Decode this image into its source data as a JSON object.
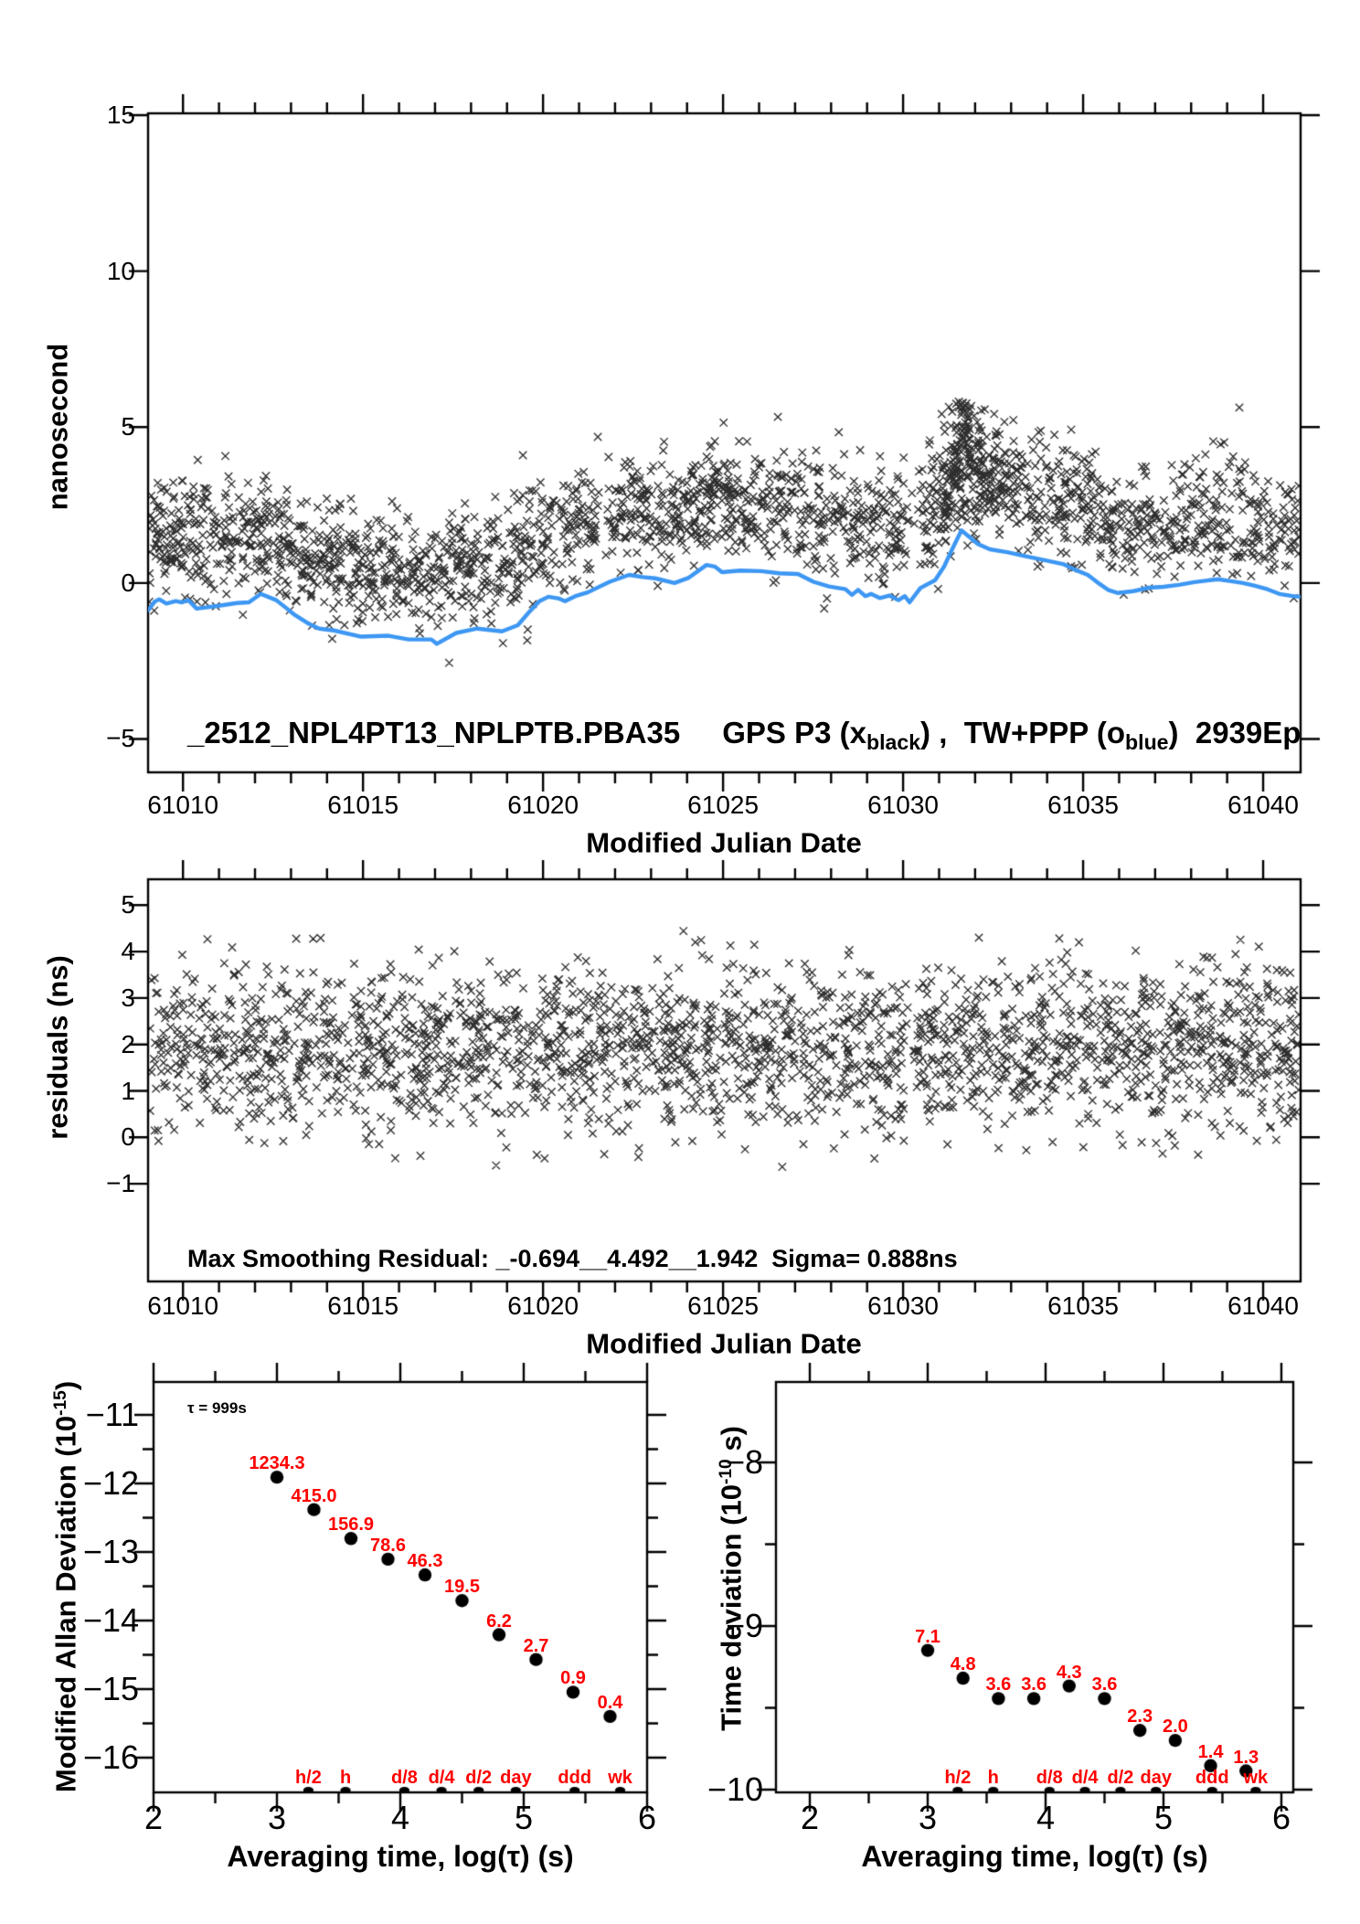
{
  "colors": {
    "background": "#ffffff",
    "ink": "#000000",
    "line_blue": "#3d97f3",
    "label_red": "#ff0000"
  },
  "top_panel": {
    "y_axis_label": "nanosecond",
    "x_axis_label": "Modified Julian Date",
    "y_tick_labels": [
      "15",
      "10",
      "5",
      "0",
      "−5"
    ],
    "x_tick_labels": [
      "61010",
      "61015",
      "61020",
      "61025",
      "61030",
      "61035",
      "61040"
    ],
    "title_parts": {
      "left": "_2512_NPL4PT13_NPLPTB.PBA35",
      "mid1": "GPS P3 (x",
      "sub1": "black",
      "mid2": ") ,  TW+PPP (o",
      "sub2": "blue",
      "tail": ")  2939Ep"
    }
  },
  "middle_panel": {
    "y_axis_label": "residuals (ns)",
    "x_axis_label": "Modified Julian Date",
    "y_tick_labels": [
      "5",
      "4",
      "3",
      "2",
      "1",
      "0",
      "−1"
    ],
    "x_tick_labels": [
      "61010",
      "61015",
      "61020",
      "61025",
      "61030",
      "61035",
      "61040"
    ],
    "annotation": "Max Smoothing Residual: _-0.694__4.492__1.942  Sigma= 0.888ns"
  },
  "bottom_left": {
    "y_axis_label_parts": {
      "main": "Modified Allan Deviation (10",
      "sup": "-15",
      "close": ")"
    },
    "x_axis_label": "Averaging time, log(τ) (s)",
    "annotation": "τ = 999s",
    "y_tick_labels": [
      "−11",
      "−12",
      "−13",
      "−14",
      "−15",
      "−16"
    ],
    "x_tick_labels": [
      "2",
      "3",
      "4",
      "5",
      "6"
    ]
  },
  "bottom_right": {
    "y_axis_label_parts": {
      "main": "Time deviation (10",
      "sup": "-10",
      "close": " s)"
    },
    "x_axis_label": "Averaging time, log(τ) (s)",
    "y_tick_labels": [
      "−8",
      "−9",
      "−10"
    ],
    "x_tick_labels": [
      "2",
      "3",
      "4",
      "5",
      "6"
    ]
  },
  "chart_data": [
    {
      "id": "time_comparison",
      "type": "scatter",
      "panel": "top",
      "title": "_2512_NPL4PT13_NPLPTB.PBA35  GPS P3 (x black) , TW+PPP (o blue) 2939Ep",
      "xlabel": "Modified Julian Date",
      "ylabel": "nanosecond",
      "x_range": [
        61009.03,
        61041.04
      ],
      "y_range": [
        -6.07,
        15.06
      ],
      "x_ticks_major": [
        61010,
        61015,
        61020,
        61025,
        61030,
        61035,
        61040
      ],
      "x_minor_step": 1,
      "y_ticks_major": [
        15,
        10,
        5,
        0,
        -5
      ],
      "series": [
        {
          "name": "GPS P3 (x black)",
          "type": "scatter",
          "marker": "x",
          "color": "#000000",
          "generator": {
            "n": 2250,
            "seed": 1337,
            "offset": 2.15,
            "sigma": 0.9,
            "y_max": 5.82,
            "cluster": {
              "center": 61031.55,
              "sd": 0.55,
              "n": 170,
              "extra_offset": 0.5,
              "sigma": 1.05
            },
            "gaps": [
              [
                61030.08,
                61030.5
              ],
              [
                61021.55,
                61021.92
              ]
            ]
          }
        },
        {
          "name": "TW+PPP (o blue)",
          "type": "line",
          "color": "#3d97f3",
          "points": [
            [
              61009.04,
              -0.87
            ],
            [
              61009.21,
              -0.6
            ],
            [
              61009.34,
              -0.52
            ],
            [
              61009.54,
              -0.66
            ],
            [
              61009.8,
              -0.58
            ],
            [
              61009.97,
              -0.62
            ],
            [
              61010.15,
              -0.55
            ],
            [
              61010.38,
              -0.82
            ],
            [
              61010.99,
              -0.73
            ],
            [
              61011.5,
              -0.64
            ],
            [
              61011.83,
              -0.62
            ],
            [
              61012.16,
              -0.35
            ],
            [
              61012.59,
              -0.55
            ],
            [
              61012.92,
              -0.85
            ],
            [
              61013.1,
              -1.02
            ],
            [
              61013.5,
              -1.31
            ],
            [
              61013.78,
              -1.46
            ],
            [
              61014.19,
              -1.52
            ],
            [
              61014.95,
              -1.72
            ],
            [
              61015.71,
              -1.69
            ],
            [
              61016.27,
              -1.81
            ],
            [
              61016.9,
              -1.81
            ],
            [
              61017.05,
              -1.95
            ],
            [
              61017.59,
              -1.6
            ],
            [
              61018.17,
              -1.46
            ],
            [
              61018.86,
              -1.55
            ],
            [
              61019.3,
              -1.35
            ],
            [
              61019.6,
              -0.95
            ],
            [
              61019.9,
              -0.58
            ],
            [
              61020.15,
              -0.44
            ],
            [
              61020.45,
              -0.5
            ],
            [
              61020.61,
              -0.58
            ],
            [
              61020.9,
              -0.42
            ],
            [
              61021.24,
              -0.3
            ],
            [
              61021.85,
              0.04
            ],
            [
              61022.39,
              0.26
            ],
            [
              61022.77,
              0.19
            ],
            [
              61023.12,
              0.15
            ],
            [
              61023.65,
              0.0
            ],
            [
              61024.03,
              0.16
            ],
            [
              61024.54,
              0.58
            ],
            [
              61024.77,
              0.53
            ],
            [
              61024.97,
              0.35
            ],
            [
              61025.48,
              0.4
            ],
            [
              61026.06,
              0.38
            ],
            [
              61026.57,
              0.31
            ],
            [
              61027.08,
              0.29
            ],
            [
              61027.51,
              0.04
            ],
            [
              61027.94,
              -0.11
            ],
            [
              61028.4,
              -0.2
            ],
            [
              61028.58,
              -0.38
            ],
            [
              61028.75,
              -0.22
            ],
            [
              61028.95,
              -0.42
            ],
            [
              61029.11,
              -0.35
            ],
            [
              61029.35,
              -0.48
            ],
            [
              61029.62,
              -0.4
            ],
            [
              61029.87,
              -0.55
            ],
            [
              61030.05,
              -0.42
            ],
            [
              61030.18,
              -0.62
            ],
            [
              61030.48,
              -0.16
            ],
            [
              61030.89,
              0.09
            ],
            [
              61031.14,
              0.53
            ],
            [
              61031.35,
              1.05
            ],
            [
              61031.62,
              1.69
            ],
            [
              61032.08,
              1.25
            ],
            [
              61032.41,
              1.08
            ],
            [
              61032.89,
              0.99
            ],
            [
              61033.35,
              0.87
            ],
            [
              61033.93,
              0.73
            ],
            [
              61034.44,
              0.61
            ],
            [
              61034.87,
              0.38
            ],
            [
              61035.13,
              0.26
            ],
            [
              61035.46,
              -0.03
            ],
            [
              61035.71,
              -0.23
            ],
            [
              61035.97,
              -0.32
            ],
            [
              61036.4,
              -0.26
            ],
            [
              61036.83,
              -0.15
            ],
            [
              61037.23,
              -0.12
            ],
            [
              61037.66,
              -0.06
            ],
            [
              61038.09,
              0.03
            ],
            [
              61038.5,
              0.09
            ],
            [
              61038.75,
              0.12
            ],
            [
              61039.11,
              0.06
            ],
            [
              61039.44,
              0.0
            ],
            [
              61039.77,
              -0.09
            ],
            [
              61040.12,
              -0.2
            ],
            [
              61040.45,
              -0.35
            ],
            [
              61040.78,
              -0.41
            ],
            [
              61041.0,
              -0.44
            ]
          ]
        }
      ]
    },
    {
      "id": "residuals",
      "type": "scatter",
      "panel": "mid",
      "xlabel": "Modified Julian Date",
      "ylabel": "residuals (ns)",
      "x_range": [
        61009.03,
        61041.04
      ],
      "y_range": [
        -3.104,
        5.557
      ],
      "x_ticks_major": [
        61010,
        61015,
        61020,
        61025,
        61030,
        61035,
        61040
      ],
      "x_minor_step": 1,
      "y_ticks_major": [
        5,
        4,
        3,
        2,
        1,
        0,
        -1
      ],
      "stats": {
        "min": -0.694,
        "max": 4.492,
        "mean": 1.942,
        "sigma": 0.888
      },
      "generator": {
        "n": 2280,
        "seed": 4242,
        "mean": 1.942,
        "sigma": 0.888,
        "clip": [
          -0.694,
          4.492
        ],
        "gaps": [
          [
            61030.08,
            61030.4
          ]
        ]
      }
    },
    {
      "id": "modified_allan_deviation",
      "type": "scatter",
      "panel": "bl",
      "xlabel": "Averaging time, log(τ) (s)",
      "ylabel": "Modified Allan Deviation (10^-15)",
      "annotation": "τ = 999s",
      "x_range": [
        2.0,
        6.0
      ],
      "y_range": [
        -16.507,
        -10.52
      ],
      "x_ticks_major": [
        2,
        3,
        4,
        5,
        6
      ],
      "x_ticks_minor": [
        2.5,
        3.5,
        4.5,
        5.5
      ],
      "y_ticks_major": [
        -11,
        -12,
        -13,
        -14,
        -15,
        -16
      ],
      "y_ticks_minor": [
        -11.5,
        -12.5,
        -13.5,
        -14.5,
        -15.5
      ],
      "unit_exponent": -15,
      "points": [
        {
          "logtau": 3.0,
          "value": 1234.3,
          "label": "1234.3"
        },
        {
          "logtau": 3.3,
          "value": 415.0,
          "label": "415.0"
        },
        {
          "logtau": 3.6,
          "value": 156.9,
          "label": "156.9"
        },
        {
          "logtau": 3.9,
          "value": 78.6,
          "label": "78.6"
        },
        {
          "logtau": 4.2,
          "value": 46.3,
          "label": "46.3"
        },
        {
          "logtau": 4.5,
          "value": 19.5,
          "label": "19.5"
        },
        {
          "logtau": 4.8,
          "value": 6.2,
          "label": "6.2"
        },
        {
          "logtau": 5.1,
          "value": 2.7,
          "label": "2.7"
        },
        {
          "logtau": 5.4,
          "value": 0.9,
          "label": "0.9"
        },
        {
          "logtau": 5.7,
          "value": 0.4,
          "label": "0.4"
        }
      ],
      "category_markers": [
        {
          "label": "h/2",
          "logtau": 3.255
        },
        {
          "label": "h",
          "logtau": 3.556
        },
        {
          "label": "d/8",
          "logtau": 4.033
        },
        {
          "label": "d/4",
          "logtau": 4.334
        },
        {
          "label": "d/2",
          "logtau": 4.635
        },
        {
          "label": "day",
          "logtau": 4.936
        },
        {
          "label": "ddd",
          "logtau": 5.413
        },
        {
          "label": "wk",
          "logtau": 5.782
        }
      ]
    },
    {
      "id": "time_deviation",
      "type": "scatter",
      "panel": "br",
      "xlabel": "Averaging time, log(τ) (s)",
      "ylabel": "Time deviation (10^-10 s)",
      "x_range": [
        1.713,
        6.101
      ],
      "y_range": [
        -10.017,
        -7.508
      ],
      "x_ticks_major": [
        2,
        3,
        4,
        5,
        6
      ],
      "x_ticks_minor": [
        2.5,
        3.5,
        4.5,
        5.5
      ],
      "y_ticks_major": [
        -8,
        -9,
        -10
      ],
      "y_ticks_minor": [
        -8.5,
        -9.5
      ],
      "unit_exponent": -10,
      "points": [
        {
          "logtau": 3.0,
          "value": 7.1,
          "label": "7.1"
        },
        {
          "logtau": 3.3,
          "value": 4.8,
          "label": "4.8"
        },
        {
          "logtau": 3.6,
          "value": 3.6,
          "label": "3.6"
        },
        {
          "logtau": 3.9,
          "value": 3.6,
          "label": "3.6"
        },
        {
          "logtau": 4.2,
          "value": 4.3,
          "label": "4.3"
        },
        {
          "logtau": 4.5,
          "value": 3.6,
          "label": "3.6"
        },
        {
          "logtau": 4.8,
          "value": 2.3,
          "label": "2.3"
        },
        {
          "logtau": 5.1,
          "value": 2.0,
          "label": "2.0"
        },
        {
          "logtau": 5.4,
          "value": 1.4,
          "label": "1.4"
        },
        {
          "logtau": 5.7,
          "value": 1.3,
          "label": "1.3"
        }
      ],
      "category_markers": [
        {
          "label": "h/2",
          "logtau": 3.255
        },
        {
          "label": "h",
          "logtau": 3.556
        },
        {
          "label": "d/8",
          "logtau": 4.033
        },
        {
          "label": "d/4",
          "logtau": 4.334
        },
        {
          "label": "d/2",
          "logtau": 4.635
        },
        {
          "label": "day",
          "logtau": 4.936
        },
        {
          "label": "ddd",
          "logtau": 5.413
        },
        {
          "label": "wk",
          "logtau": 5.782
        }
      ]
    }
  ]
}
